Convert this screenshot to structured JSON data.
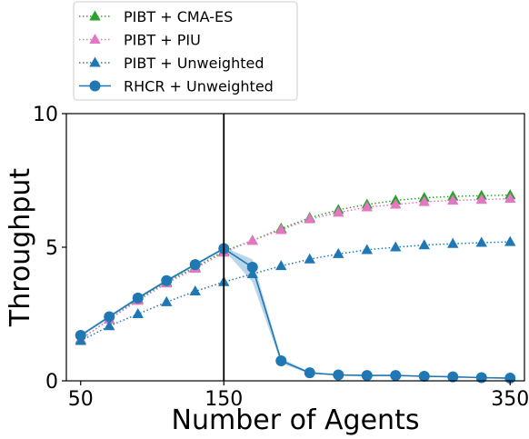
{
  "chart_data": {
    "type": "line",
    "xlabel": "Number of Agents",
    "ylabel": "Throughput",
    "xlim": [
      40,
      360
    ],
    "ylim": [
      0,
      10
    ],
    "x_ticks": [
      50,
      150,
      350
    ],
    "x_tick_labels": [
      "50",
      "150",
      "350"
    ],
    "y_ticks": [
      0,
      5,
      10
    ],
    "y_tick_labels": [
      "0",
      "5",
      "10"
    ],
    "vertical_line_x": 150,
    "grid": false,
    "legend_position": "top-left, outside above plot",
    "legend": [
      {
        "label": "PIBT + CMA-ES",
        "color": "#2ca02c",
        "marker": "triangle",
        "linestyle": "dotted"
      },
      {
        "label": "PIBT + PIU",
        "color": "#e377c2",
        "marker": "triangle",
        "linestyle": "dotted"
      },
      {
        "label": "PIBT + Unweighted",
        "color": "#1f77b4",
        "marker": "triangle",
        "linestyle": "dotted"
      },
      {
        "label": "RHCR + Unweighted",
        "color": "#1f77b4",
        "marker": "circle",
        "linestyle": "solid"
      }
    ],
    "series": [
      {
        "name": "PIBT + CMA-ES",
        "color": "#2ca02c",
        "marker": "triangle",
        "linestyle": "dotted",
        "x": [
          50,
          70,
          90,
          110,
          130,
          150,
          170,
          190,
          210,
          230,
          250,
          270,
          290,
          310,
          330,
          350
        ],
        "y": [
          1.55,
          2.3,
          3.05,
          3.7,
          4.25,
          4.85,
          5.25,
          5.7,
          6.1,
          6.4,
          6.6,
          6.75,
          6.85,
          6.9,
          6.93,
          6.95
        ]
      },
      {
        "name": "PIBT + PIU",
        "color": "#e377c2",
        "marker": "triangle",
        "linestyle": "dotted",
        "x": [
          50,
          70,
          90,
          110,
          130,
          150,
          170,
          190,
          210,
          230,
          250,
          270,
          290,
          310,
          330,
          350
        ],
        "y": [
          1.55,
          2.3,
          3.0,
          3.65,
          4.2,
          4.8,
          5.25,
          5.65,
          6.05,
          6.3,
          6.5,
          6.6,
          6.7,
          6.75,
          6.78,
          6.82
        ]
      },
      {
        "name": "PIBT + Unweighted",
        "color": "#1f77b4",
        "marker": "triangle",
        "linestyle": "dotted",
        "x": [
          50,
          70,
          90,
          110,
          130,
          150,
          170,
          190,
          210,
          230,
          250,
          270,
          290,
          310,
          330,
          350
        ],
        "y": [
          1.5,
          2.05,
          2.5,
          2.95,
          3.35,
          3.7,
          4.0,
          4.3,
          4.55,
          4.75,
          4.9,
          5.0,
          5.08,
          5.13,
          5.17,
          5.2
        ]
      },
      {
        "name": "RHCR + Unweighted",
        "color": "#1f77b4",
        "marker": "circle",
        "linestyle": "solid",
        "x": [
          50,
          70,
          90,
          110,
          130,
          150,
          170,
          190,
          210,
          230,
          250,
          270,
          290,
          310,
          330,
          350
        ],
        "y": [
          1.7,
          2.4,
          3.1,
          3.75,
          4.35,
          4.95,
          4.25,
          0.75,
          0.3,
          0.22,
          0.2,
          0.2,
          0.17,
          0.15,
          0.12,
          0.1
        ],
        "band_lower": [
          1.65,
          2.35,
          3.05,
          3.7,
          4.3,
          4.9,
          3.7,
          0.65,
          0.27,
          0.2,
          0.18,
          0.18,
          0.15,
          0.13,
          0.1,
          0.08
        ],
        "band_upper": [
          1.75,
          2.45,
          3.15,
          3.8,
          4.4,
          5.0,
          4.55,
          0.85,
          0.33,
          0.24,
          0.22,
          0.22,
          0.19,
          0.17,
          0.14,
          0.12
        ]
      }
    ]
  }
}
